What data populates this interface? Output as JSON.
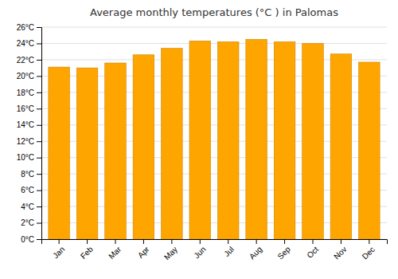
{
  "chart_data": {
    "type": "bar",
    "title": "Average monthly temperatures (°C ) in Palomas",
    "categories": [
      "Jan",
      "Feb",
      "Mar",
      "Apr",
      "May",
      "Jun",
      "Jul",
      "Aug",
      "Sep",
      "Oct",
      "Nov",
      "Dec"
    ],
    "values": [
      21.1,
      21.0,
      21.6,
      22.6,
      23.4,
      24.3,
      24.2,
      24.5,
      24.2,
      24.0,
      22.7,
      21.7
    ],
    "color": "#FFA500",
    "ylim": [
      0,
      26
    ],
    "yticks": [
      {
        "value": 0,
        "label": "0°C"
      },
      {
        "value": 2,
        "label": "2°C"
      },
      {
        "value": 4,
        "label": "4°C"
      },
      {
        "value": 6,
        "label": "6°C"
      },
      {
        "value": 8,
        "label": "8°C"
      },
      {
        "value": 10,
        "label": "10°C"
      },
      {
        "value": 12,
        "label": "12°C"
      },
      {
        "value": 14,
        "label": "14°C"
      },
      {
        "value": 16,
        "label": "16°C"
      },
      {
        "value": 18,
        "label": "18°C"
      },
      {
        "value": 20,
        "label": "20°C"
      },
      {
        "value": 22,
        "label": "22°C"
      },
      {
        "value": 24,
        "label": "24°C"
      },
      {
        "value": 26,
        "label": "26°C"
      }
    ],
    "grid": true
  }
}
